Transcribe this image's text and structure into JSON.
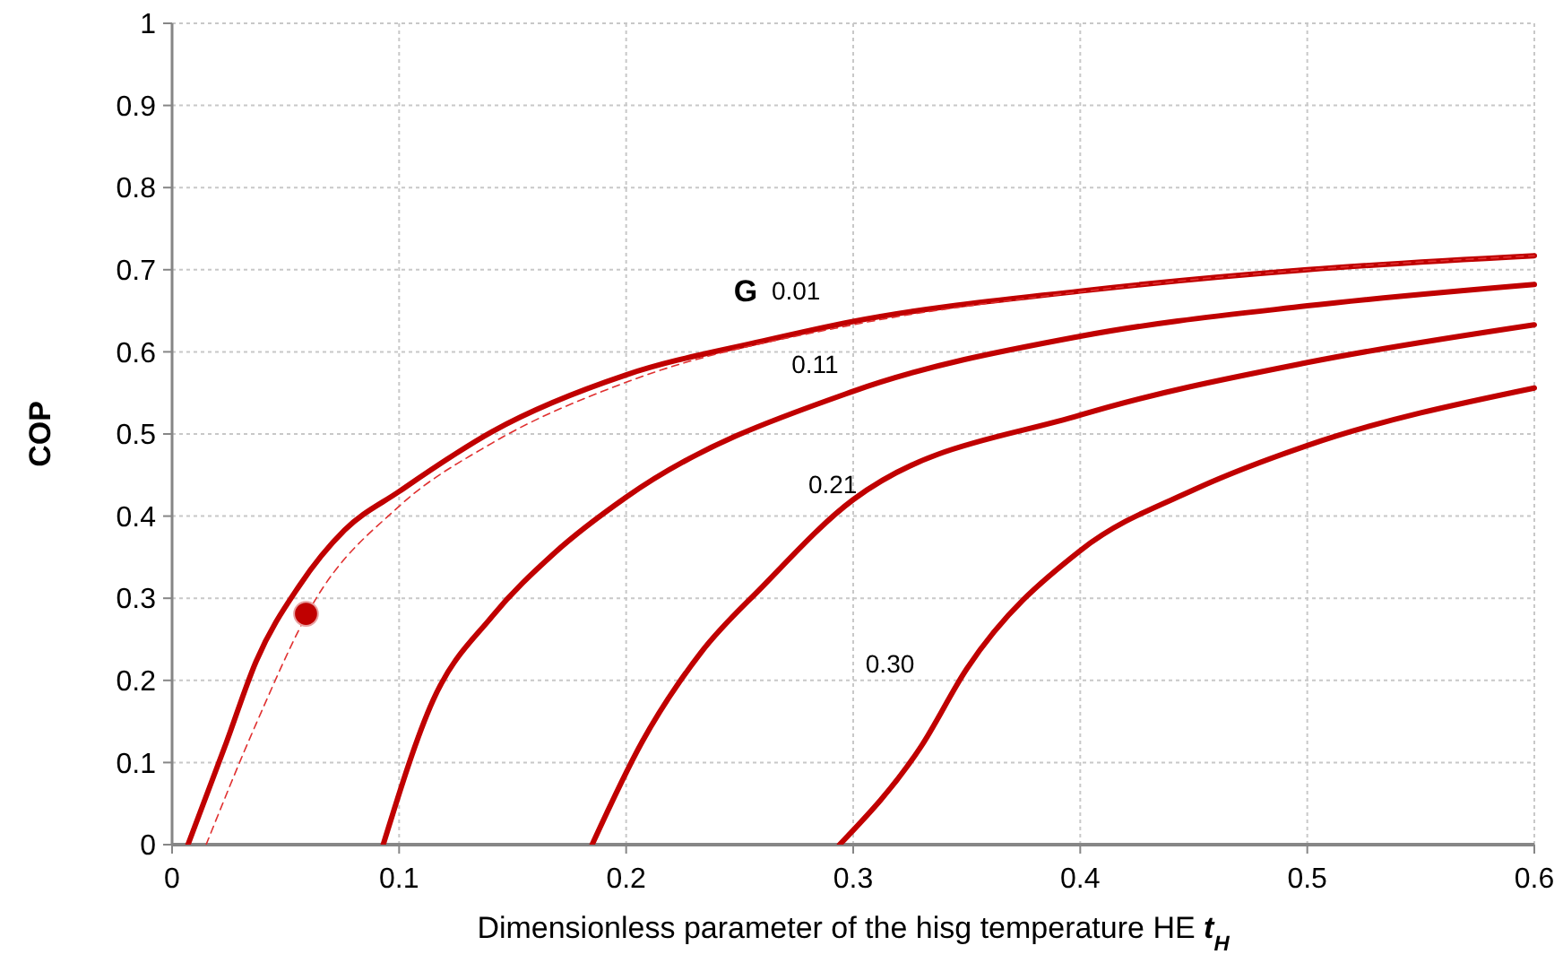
{
  "chart_data": {
    "type": "line",
    "xlabel": "Dimensionless parameter of the hisg temperature HE t$_{H}$",
    "ylabel": "COP",
    "xlim": [
      0,
      0.6
    ],
    "xticks": [
      0,
      0.1,
      0.2,
      0.3,
      0.4,
      0.5,
      0.6
    ],
    "ylim": [
      0,
      1
    ],
    "yticks": [
      0,
      0.1,
      0.2,
      0.3,
      0.4,
      0.5,
      0.6,
      0.7,
      0.8,
      0.9,
      1
    ],
    "grid": true,
    "marker": "none",
    "series": [
      {
        "color": "#c00000",
        "line_style": "solid",
        "x": [
          0.007,
          0.024,
          0.037,
          0.056,
          0.076,
          0.1,
          0.141,
          0.2,
          0.26,
          0.3,
          0.4,
          0.5,
          0.6
        ],
        "values": [
          0,
          0.125,
          0.223,
          0.315,
          0.383,
          0.43,
          0.503,
          0.572,
          0.613,
          0.637,
          0.674,
          0.7,
          0.717
        ]
      },
      {
        "color": "#e03030",
        "line_style": "dashed",
        "x": [
          0.015,
          0.037,
          0.062,
          0.1,
          0.141,
          0.2,
          0.3,
          0.4,
          0.5,
          0.6
        ],
        "values": [
          0,
          0.147,
          0.293,
          0.412,
          0.489,
          0.563,
          0.633,
          0.673,
          0.7,
          0.717
        ]
      },
      {
        "color": "#c00000",
        "line_style": "solid",
        "x": [
          0.093,
          0.115,
          0.141,
          0.168,
          0.2,
          0.3,
          0.4,
          0.5,
          0.6
        ],
        "values": [
          0,
          0.176,
          0.278,
          0.354,
          0.423,
          0.552,
          0.619,
          0.656,
          0.682
        ]
      },
      {
        "color": "#c00000",
        "line_style": "solid",
        "x": [
          0.185,
          0.207,
          0.233,
          0.26,
          0.3,
          0.4,
          0.5,
          0.6
        ],
        "values": [
          0,
          0.125,
          0.234,
          0.314,
          0.42,
          0.523,
          0.587,
          0.633
        ]
      },
      {
        "color": "#c00000",
        "line_style": "solid",
        "x": [
          0.294,
          0.33,
          0.35,
          0.4,
          0.45,
          0.5,
          0.6
        ],
        "values": [
          0,
          0.12,
          0.214,
          0.358,
          0.432,
          0.486,
          0.556
        ]
      },
      {
        "type": "scatter",
        "marker": "circle",
        "color": "#c00000",
        "x": [
          0.059
        ],
        "values": [
          0.281
        ]
      }
    ],
    "annotations": [
      "G",
      "0.01",
      "0.11",
      "0.21",
      "0.30"
    ]
  }
}
